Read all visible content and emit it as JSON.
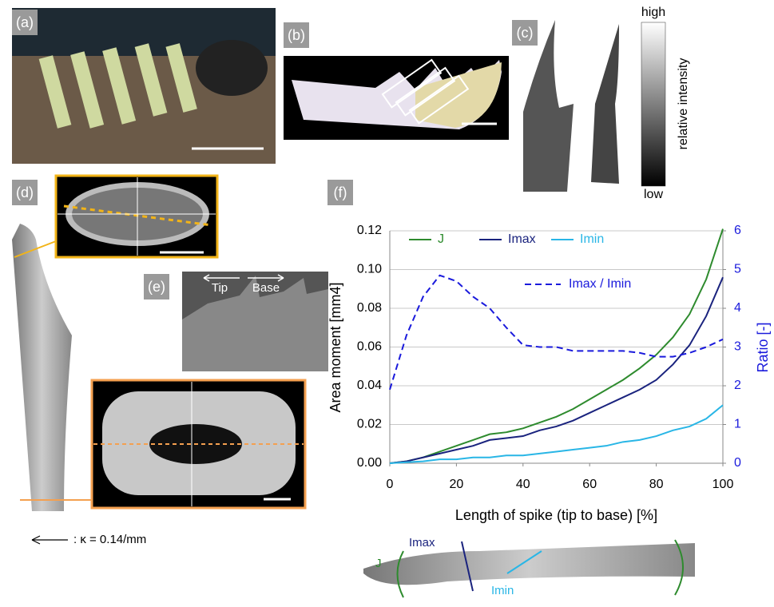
{
  "panel_labels": [
    "(a)",
    "(b)",
    "(c)",
    "(d)",
    "(e)",
    "(f)"
  ],
  "colorbar": {
    "high": "high",
    "low": "low",
    "label": "relative intensity"
  },
  "sem": {
    "tip": "Tip",
    "base": "Base"
  },
  "curvature_key": ": κ = 0.14/mm",
  "spike_diagram": {
    "imax": "Imax",
    "j": "J",
    "imin": "Imin"
  },
  "chart_data": {
    "type": "line",
    "xlabel": "Length of spike (tip to base) [%]",
    "ylabel": "Area moment [mm4]",
    "y2label": "Ratio [-]",
    "x": [
      0,
      5,
      10,
      15,
      20,
      25,
      30,
      35,
      40,
      45,
      50,
      55,
      60,
      65,
      70,
      75,
      80,
      85,
      90,
      95,
      100
    ],
    "xlim": [
      0,
      100
    ],
    "xticks": [
      0,
      20,
      40,
      60,
      80,
      100
    ],
    "ylim": [
      0,
      0.12
    ],
    "yticks": [
      {
        "value": 0,
        "label": "0.00"
      },
      {
        "value": 0.02,
        "label": "0.02"
      },
      {
        "value": 0.04,
        "label": "0.04"
      },
      {
        "value": 0.06,
        "label": "0.06"
      },
      {
        "value": 0.08,
        "label": "0.08"
      },
      {
        "value": 0.1,
        "label": "0.10"
      },
      {
        "value": 0.12,
        "label": "0.12"
      }
    ],
    "y2lim": [
      0,
      6
    ],
    "y2ticks": [
      0,
      1,
      2,
      3,
      4,
      5,
      6
    ],
    "y2color": "#1a1adc",
    "grid": true,
    "series": [
      {
        "name": "J",
        "color": "#2e8b2e",
        "values": [
          0,
          0.001,
          0.003,
          0.006,
          0.009,
          0.012,
          0.015,
          0.016,
          0.018,
          0.021,
          0.024,
          0.028,
          0.033,
          0.038,
          0.043,
          0.049,
          0.056,
          0.065,
          0.077,
          0.095,
          0.121
        ]
      },
      {
        "name": "Imax",
        "color": "#1a237e",
        "values": [
          0,
          0.001,
          0.003,
          0.005,
          0.007,
          0.009,
          0.012,
          0.013,
          0.014,
          0.017,
          0.019,
          0.022,
          0.026,
          0.03,
          0.034,
          0.038,
          0.043,
          0.051,
          0.061,
          0.076,
          0.096
        ]
      },
      {
        "name": "Imin",
        "color": "#29b6e6",
        "values": [
          0,
          0.0005,
          0.001,
          0.002,
          0.002,
          0.003,
          0.003,
          0.004,
          0.004,
          0.005,
          0.006,
          0.007,
          0.008,
          0.009,
          0.011,
          0.012,
          0.014,
          0.017,
          0.019,
          0.023,
          0.03
        ]
      },
      {
        "name": "Imax / Imin",
        "color": "#1a1adc",
        "dashed": true,
        "axis": "y2",
        "values": [
          1.9,
          3.3,
          4.3,
          4.85,
          4.7,
          4.3,
          4.0,
          3.5,
          3.05,
          3.0,
          3.0,
          2.9,
          2.9,
          2.9,
          2.9,
          2.85,
          2.75,
          2.75,
          2.85,
          3.0,
          3.2
        ]
      }
    ]
  }
}
